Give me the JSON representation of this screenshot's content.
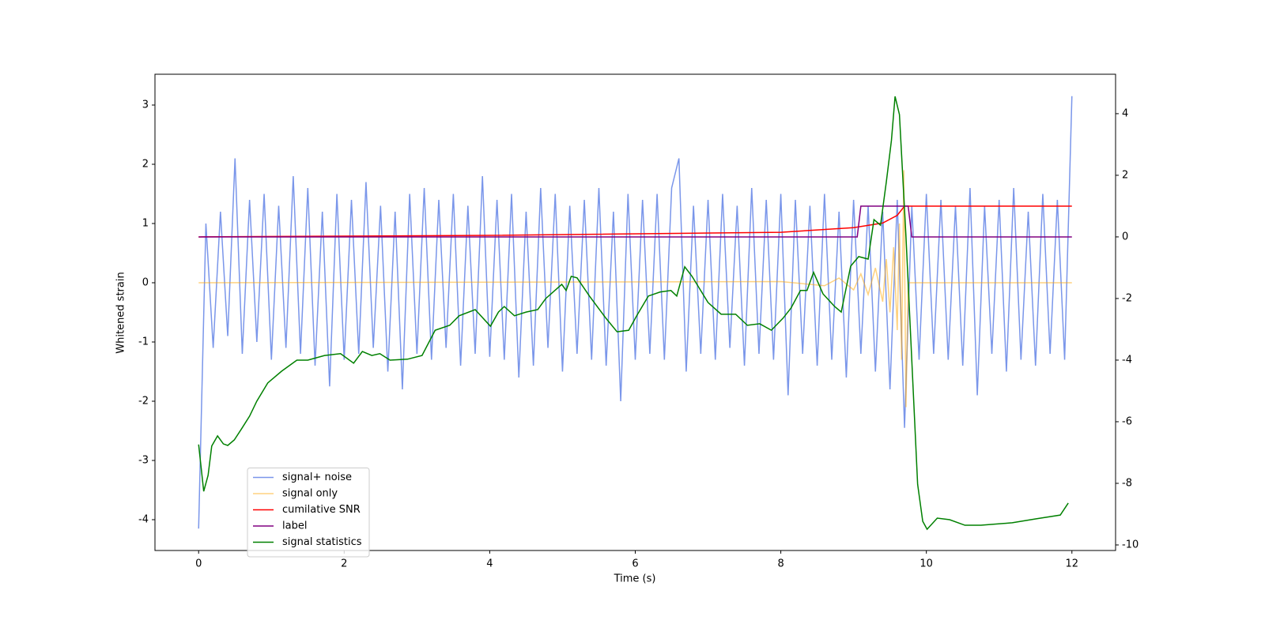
{
  "chart_data": {
    "type": "line",
    "xlabel": "Time (s)",
    "ylabel": "Whitened strain",
    "xlim": [
      -0.6,
      12.6
    ],
    "xticks": [
      0,
      2,
      4,
      6,
      8,
      10,
      12
    ],
    "ylim": [
      -4.52,
      3.52
    ],
    "yticks": [
      -4,
      -3,
      -2,
      -1,
      0,
      1,
      2,
      3
    ],
    "y2lim": [
      -10.18,
      5.28
    ],
    "y2ticks": [
      -10,
      -8,
      -6,
      -4,
      -2,
      0,
      2,
      4
    ],
    "legend": "lower left",
    "series": [
      {
        "name": "signal+ noise",
        "color": "#4169e1",
        "alpha": 0.7,
        "x": [
          0,
          0.1,
          0.2,
          0.3,
          0.4,
          0.5,
          0.6,
          0.7,
          0.8,
          0.9,
          1,
          1.1,
          1.2,
          1.3,
          1.4,
          1.5,
          1.6,
          1.7,
          1.8,
          1.9,
          2,
          2.1,
          2.2,
          2.3,
          2.4,
          2.5,
          2.6,
          2.7,
          2.8,
          2.9,
          3,
          3.1,
          3.2,
          3.3,
          3.4,
          3.5,
          3.6,
          3.7,
          3.8,
          3.9,
          4,
          4.1,
          4.2,
          4.3,
          4.4,
          4.5,
          4.6,
          4.7,
          4.8,
          4.9,
          5,
          5.1,
          5.2,
          5.3,
          5.4,
          5.5,
          5.6,
          5.7,
          5.8,
          5.9,
          6,
          6.1,
          6.2,
          6.3,
          6.4,
          6.5,
          6.6,
          6.7,
          6.8,
          6.9,
          7,
          7.1,
          7.2,
          7.3,
          7.4,
          7.5,
          7.6,
          7.7,
          7.8,
          7.9,
          8,
          8.1,
          8.2,
          8.3,
          8.4,
          8.5,
          8.6,
          8.7,
          8.8,
          8.9,
          9,
          9.1,
          9.2,
          9.3,
          9.4,
          9.5,
          9.6,
          9.7,
          9.8,
          9.9,
          10,
          10.1,
          10.2,
          10.3,
          10.4,
          10.5,
          10.6,
          10.7,
          10.8,
          10.9,
          11,
          11.1,
          11.2,
          11.3,
          11.4,
          11.5,
          11.6,
          11.7,
          11.8,
          11.9,
          12
        ],
        "values": [
          -4.15,
          1.0,
          -1.1,
          1.2,
          -0.9,
          2.1,
          -1.2,
          1.4,
          -1.0,
          1.5,
          -1.3,
          1.3,
          -1.1,
          1.8,
          -1.2,
          1.6,
          -1.4,
          1.2,
          -1.75,
          1.5,
          -1.3,
          1.4,
          -1.2,
          1.7,
          -1.1,
          1.3,
          -1.5,
          1.2,
          -1.8,
          1.5,
          -1.2,
          1.6,
          -1.3,
          1.4,
          -1.1,
          1.5,
          -1.4,
          1.3,
          -1.2,
          1.8,
          -1.25,
          1.4,
          -1.3,
          1.5,
          -1.6,
          1.2,
          -1.4,
          1.6,
          -1.1,
          1.5,
          -1.5,
          1.3,
          -1.2,
          1.4,
          -1.3,
          1.6,
          -1.4,
          1.2,
          -2.0,
          1.5,
          -1.3,
          1.4,
          -1.2,
          1.5,
          -1.3,
          1.6,
          2.1,
          -1.5,
          1.3,
          -1.2,
          1.4,
          -1.3,
          1.5,
          -1.1,
          1.3,
          -1.4,
          1.6,
          -1.2,
          1.4,
          -1.3,
          1.5,
          -1.9,
          1.4,
          -1.2,
          1.3,
          -1.4,
          1.5,
          -1.3,
          1.2,
          -1.6,
          1.4,
          -1.2,
          1.3,
          -1.5,
          1.2,
          -1.8,
          1.4,
          -2.45,
          1.3,
          -1.3,
          1.5,
          -1.2,
          1.4,
          -1.3,
          1.3,
          -1.4,
          1.6,
          -1.9,
          1.3,
          -1.2,
          1.4,
          -1.5,
          1.6,
          -1.3,
          1.2,
          -1.4,
          1.5,
          -1.2,
          1.4,
          -1.3,
          3.15
        ]
      },
      {
        "name": "signal only",
        "color": "#ffa500",
        "alpha": 0.5,
        "x": [
          0,
          8,
          8.6,
          8.8,
          9.0,
          9.1,
          9.2,
          9.3,
          9.4,
          9.45,
          9.5,
          9.55,
          9.6,
          9.63,
          9.66,
          9.69,
          9.72,
          9.75,
          12
        ],
        "values": [
          0,
          0.02,
          -0.05,
          0.08,
          -0.12,
          0.15,
          -0.2,
          0.25,
          -0.32,
          0.4,
          -0.5,
          0.6,
          -0.8,
          1.0,
          -1.3,
          1.9,
          -2.1,
          0,
          0
        ]
      },
      {
        "name": "cumilative SNR",
        "color": "#ff0000",
        "alpha": 1,
        "axis": "y2",
        "x": [
          0,
          4,
          8,
          9,
          9.4,
          9.6,
          9.7,
          9.72,
          12
        ],
        "values": [
          0,
          0.05,
          0.15,
          0.3,
          0.45,
          0.7,
          1.0,
          1.0,
          1.0
        ]
      },
      {
        "name": "label",
        "color": "#800080",
        "alpha": 1,
        "axis": "y2",
        "x": [
          0,
          9.05,
          9.1,
          9.75,
          9.8,
          12
        ],
        "values": [
          0,
          0,
          1,
          1,
          0,
          0
        ]
      },
      {
        "name": "signal statistics",
        "color": "#008000",
        "alpha": 1,
        "axis": "y2",
        "x": [
          0,
          0.07,
          0.13,
          0.18,
          0.26,
          0.34,
          0.4,
          0.49,
          0.59,
          0.7,
          0.8,
          0.95,
          1.14,
          1.35,
          1.5,
          1.73,
          1.95,
          2.13,
          2.25,
          2.38,
          2.49,
          2.63,
          2.87,
          3.07,
          3.25,
          3.45,
          3.58,
          3.8,
          4.01,
          4.12,
          4.2,
          4.34,
          4.5,
          4.66,
          4.77,
          4.99,
          5.05,
          5.12,
          5.2,
          5.37,
          5.59,
          5.75,
          5.91,
          6.02,
          6.18,
          6.34,
          6.49,
          6.57,
          6.68,
          6.78,
          7.0,
          7.18,
          7.38,
          7.54,
          7.71,
          7.87,
          8.03,
          8.14,
          8.27,
          8.36,
          8.45,
          8.58,
          8.74,
          8.83,
          8.96,
          9.07,
          9.2,
          9.28,
          9.37,
          9.45,
          9.52,
          9.57,
          9.63,
          9.72,
          9.88,
          9.95,
          10.01,
          10.15,
          10.32,
          10.53,
          10.75,
          11.18,
          11.51,
          11.84,
          11.95
        ],
        "values": [
          -6.74,
          -8.26,
          -7.74,
          -6.79,
          -6.46,
          -6.72,
          -6.77,
          -6.59,
          -6.23,
          -5.82,
          -5.33,
          -4.74,
          -4.36,
          -4.0,
          -4.0,
          -3.85,
          -3.79,
          -4.1,
          -3.72,
          -3.85,
          -3.79,
          -4.0,
          -3.97,
          -3.85,
          -3.03,
          -2.87,
          -2.56,
          -2.36,
          -2.9,
          -2.44,
          -2.26,
          -2.56,
          -2.44,
          -2.36,
          -2.0,
          -1.54,
          -1.74,
          -1.28,
          -1.33,
          -1.92,
          -2.62,
          -3.08,
          -3.03,
          -2.56,
          -1.92,
          -1.79,
          -1.74,
          -1.92,
          -0.97,
          -1.28,
          -2.13,
          -2.51,
          -2.51,
          -2.87,
          -2.82,
          -3.03,
          -2.64,
          -2.31,
          -1.74,
          -1.74,
          -1.15,
          -1.85,
          -2.26,
          -2.44,
          -0.95,
          -0.64,
          -0.72,
          0.56,
          0.38,
          1.79,
          3.13,
          4.56,
          3.97,
          0,
          -8.03,
          -9.23,
          -9.49,
          -9.13,
          -9.18,
          -9.36,
          -9.36,
          -9.28,
          -9.15,
          -9.03,
          -8.64
        ]
      }
    ]
  }
}
